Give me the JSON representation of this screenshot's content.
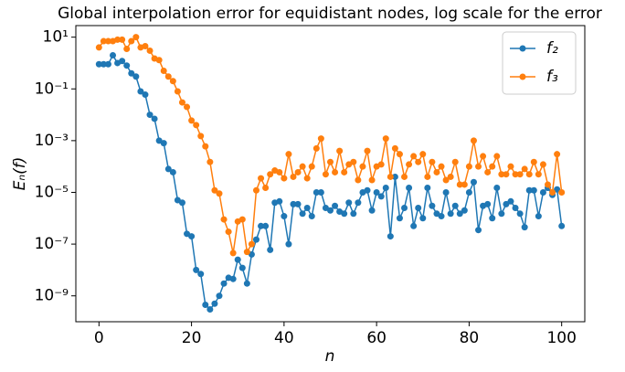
{
  "chart_data": {
    "type": "line",
    "title": "Global interpolation error for equidistant nodes, log scale for the error",
    "x_label": "n",
    "y_label": "Eₙ(f)",
    "log_y": true,
    "grid": false,
    "legend": "upper right",
    "xlim": [
      -5,
      105
    ],
    "xticks": [
      0,
      20,
      40,
      60,
      80,
      100
    ],
    "ylim": [
      1e-10,
      28
    ],
    "yticks": [
      {
        "value": 1e-09,
        "label": "10⁻⁹"
      },
      {
        "value": 1e-07,
        "label": "10⁻⁷"
      },
      {
        "value": 1e-05,
        "label": "10⁻⁵"
      },
      {
        "value": 0.001,
        "label": "10⁻³"
      },
      {
        "value": 0.1,
        "label": "10⁻¹"
      },
      {
        "value": 10,
        "label": "10¹"
      }
    ],
    "x": [
      0,
      1,
      2,
      3,
      4,
      5,
      6,
      7,
      8,
      9,
      10,
      11,
      12,
      13,
      14,
      15,
      16,
      17,
      18,
      19,
      20,
      21,
      22,
      23,
      24,
      25,
      26,
      27,
      28,
      29,
      30,
      31,
      32,
      33,
      34,
      35,
      36,
      37,
      38,
      39,
      40,
      41,
      42,
      43,
      44,
      45,
      46,
      47,
      48,
      49,
      50,
      51,
      52,
      53,
      54,
      55,
      56,
      57,
      58,
      59,
      60,
      61,
      62,
      63,
      64,
      65,
      66,
      67,
      68,
      69,
      70,
      71,
      72,
      73,
      74,
      75,
      76,
      77,
      78,
      79,
      80,
      81,
      82,
      83,
      84,
      85,
      86,
      87,
      88,
      89,
      90,
      91,
      92,
      93,
      94,
      95,
      96,
      97,
      98,
      99,
      100
    ],
    "series": [
      {
        "name": "f₂",
        "color": "#1f77b4",
        "values": [
          0.9,
          0.9,
          0.9,
          2,
          1.0,
          1.2,
          0.8,
          0.4,
          0.3,
          0.08,
          0.06,
          0.01,
          0.007,
          0.001,
          0.0008,
          8e-05,
          6e-05,
          5e-06,
          4e-06,
          2.5e-07,
          2e-07,
          1e-08,
          7e-09,
          4.5e-10,
          3e-10,
          5e-10,
          1e-09,
          3e-09,
          5e-09,
          4.5e-09,
          2.5e-08,
          1.2e-08,
          3e-09,
          4e-08,
          1.5e-07,
          5e-07,
          5e-07,
          6e-08,
          4e-06,
          4.5e-06,
          1.2e-06,
          1e-07,
          3.5e-06,
          3.5e-06,
          1.5e-06,
          2.5e-06,
          1.2e-06,
          1e-05,
          1e-05,
          2.5e-06,
          2e-06,
          3e-06,
          1.8e-06,
          1.5e-06,
          4e-06,
          1.5e-06,
          4e-06,
          1e-05,
          1.2e-05,
          2e-06,
          1e-05,
          7e-06,
          1.5e-05,
          2e-07,
          4e-05,
          1e-06,
          2.5e-06,
          1.5e-05,
          5e-07,
          2.5e-06,
          1e-06,
          1.5e-05,
          3e-06,
          1.5e-06,
          1.2e-06,
          1e-05,
          1.5e-06,
          3e-06,
          1.5e-06,
          2e-06,
          1e-05,
          2.5e-05,
          3.5e-07,
          3e-06,
          3.5e-06,
          1e-06,
          1.5e-05,
          1.5e-06,
          3.5e-06,
          4.5e-06,
          2.5e-06,
          1.5e-06,
          4.5e-07,
          1.2e-05,
          1.2e-05,
          1.2e-06,
          1e-05,
          1.5e-05,
          8e-06,
          1.3e-05,
          5e-07
        ]
      },
      {
        "name": "f₃",
        "color": "#ff7f0e",
        "values": [
          4,
          7,
          7,
          7,
          8,
          8,
          3.5,
          7,
          10,
          4,
          4.5,
          3,
          1.5,
          1.3,
          0.5,
          0.3,
          0.2,
          0.08,
          0.03,
          0.02,
          0.006,
          0.004,
          0.0015,
          0.0006,
          0.00015,
          1.2e-05,
          9e-06,
          9e-07,
          3e-07,
          4.5e-08,
          7.5e-07,
          9e-07,
          5e-08,
          1e-07,
          1.2e-05,
          3.5e-05,
          1.5e-05,
          5e-05,
          7e-05,
          6e-05,
          3.5e-05,
          0.0003,
          4e-05,
          6e-05,
          0.0001,
          3.5e-05,
          0.0001,
          0.0005,
          0.0012,
          5e-05,
          0.00015,
          6e-05,
          0.0004,
          6e-05,
          0.00012,
          0.00015,
          3e-05,
          0.0001,
          0.0004,
          3e-05,
          0.0001,
          0.00012,
          0.0012,
          4e-05,
          0.0005,
          0.0003,
          4e-05,
          0.00012,
          0.00025,
          0.00015,
          0.0003,
          4e-05,
          0.00015,
          6e-05,
          0.0001,
          3e-05,
          4e-05,
          0.00015,
          2e-05,
          2e-05,
          0.0001,
          0.001,
          0.0001,
          0.00025,
          6e-05,
          0.0001,
          0.00025,
          5e-05,
          5e-05,
          0.0001,
          5e-05,
          5e-05,
          8e-05,
          5e-05,
          0.00015,
          5e-05,
          0.00012,
          2e-05,
          1e-05,
          0.0003,
          1e-05
        ]
      }
    ]
  }
}
